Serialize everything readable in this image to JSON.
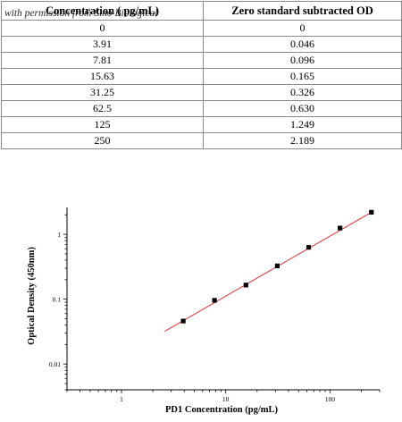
{
  "table": {
    "headers": [
      "Concentration ( pg/mL)",
      "Zero standard subtracted OD"
    ],
    "watermark": "with permission from Sino Biological",
    "rows": [
      [
        "0",
        "0"
      ],
      [
        "3.91",
        "0.046"
      ],
      [
        "7.81",
        "0.096"
      ],
      [
        "15.63",
        "0.165"
      ],
      [
        "31.25",
        "0.326"
      ],
      [
        "62.5",
        "0.630"
      ],
      [
        "125",
        "1.249"
      ],
      [
        "250",
        "2.189"
      ]
    ]
  },
  "chart_data": {
    "type": "scatter",
    "xscale": "log",
    "yscale": "log",
    "xlabel": "PD1 Concentration (pg/mL)",
    "ylabel": "Optical Density (450nm)",
    "xticks": [
      "1",
      "10",
      "100"
    ],
    "yticks": [
      "0.01",
      "0.1",
      "1"
    ],
    "xlim": [
      0.3,
      300
    ],
    "ylim": [
      0.004,
      2.6
    ],
    "grid": false,
    "series": [
      {
        "x": [
          3.91,
          7.81,
          15.63,
          31.25,
          62.5,
          125,
          250
        ],
        "y": [
          0.046,
          0.096,
          0.165,
          0.326,
          0.63,
          1.249,
          2.189
        ],
        "marker_color": "#000000"
      }
    ],
    "fit_line": {
      "x": [
        2.6,
        250
      ],
      "y": [
        0.032,
        2.189
      ],
      "color": "#e03030"
    }
  }
}
